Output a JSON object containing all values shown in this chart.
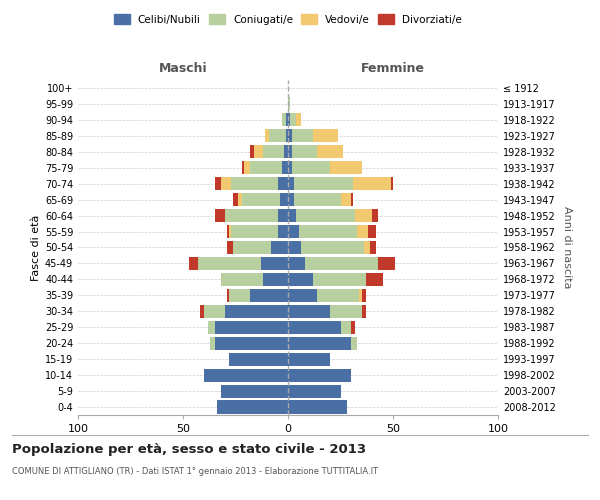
{
  "age_groups": [
    "0-4",
    "5-9",
    "10-14",
    "15-19",
    "20-24",
    "25-29",
    "30-34",
    "35-39",
    "40-44",
    "45-49",
    "50-54",
    "55-59",
    "60-64",
    "65-69",
    "70-74",
    "75-79",
    "80-84",
    "85-89",
    "90-94",
    "95-99",
    "100+"
  ],
  "birth_years": [
    "2008-2012",
    "2003-2007",
    "1998-2002",
    "1993-1997",
    "1988-1992",
    "1983-1987",
    "1978-1982",
    "1973-1977",
    "1968-1972",
    "1963-1967",
    "1958-1962",
    "1953-1957",
    "1948-1952",
    "1943-1947",
    "1938-1942",
    "1933-1937",
    "1928-1932",
    "1923-1927",
    "1918-1922",
    "1913-1917",
    "≤ 1912"
  ],
  "colors": {
    "celibi": "#4a6fa5",
    "coniugati": "#b8cfa0",
    "vedovi": "#f2c96e",
    "divorziati": "#c0392b"
  },
  "maschi": {
    "celibi": [
      34,
      32,
      40,
      28,
      35,
      35,
      30,
      18,
      12,
      13,
      8,
      5,
      5,
      4,
      5,
      3,
      2,
      1,
      1,
      0,
      0
    ],
    "coniugati": [
      0,
      0,
      0,
      0,
      2,
      3,
      10,
      10,
      20,
      30,
      18,
      22,
      25,
      18,
      22,
      15,
      10,
      8,
      2,
      0,
      0
    ],
    "vedovi": [
      0,
      0,
      0,
      0,
      0,
      0,
      0,
      0,
      0,
      0,
      0,
      1,
      0,
      2,
      5,
      3,
      4,
      2,
      0,
      0,
      0
    ],
    "divorziati": [
      0,
      0,
      0,
      0,
      0,
      0,
      2,
      1,
      0,
      4,
      3,
      1,
      5,
      2,
      3,
      1,
      2,
      0,
      0,
      0,
      0
    ]
  },
  "femmine": {
    "celibi": [
      28,
      25,
      30,
      20,
      30,
      25,
      20,
      14,
      12,
      8,
      6,
      5,
      4,
      3,
      3,
      2,
      2,
      2,
      1,
      0,
      0
    ],
    "coniugati": [
      0,
      0,
      0,
      0,
      3,
      5,
      15,
      20,
      25,
      35,
      30,
      28,
      28,
      22,
      28,
      18,
      12,
      10,
      3,
      1,
      0
    ],
    "vedovi": [
      0,
      0,
      0,
      0,
      0,
      0,
      0,
      1,
      0,
      0,
      3,
      5,
      8,
      5,
      18,
      15,
      12,
      12,
      2,
      0,
      0
    ],
    "divorziati": [
      0,
      0,
      0,
      0,
      0,
      2,
      2,
      2,
      8,
      8,
      3,
      4,
      3,
      1,
      1,
      0,
      0,
      0,
      0,
      0,
      0
    ]
  },
  "xlim": 100,
  "title": "Popolazione per età, sesso e stato civile - 2013",
  "subtitle": "COMUNE DI ATTIGLIANO (TR) - Dati ISTAT 1° gennaio 2013 - Elaborazione TUTTITALIA.IT",
  "ylabel_left": "Fasce di età",
  "ylabel_right": "Anni di nascita",
  "xlabel_left": "Maschi",
  "xlabel_right": "Femmine"
}
